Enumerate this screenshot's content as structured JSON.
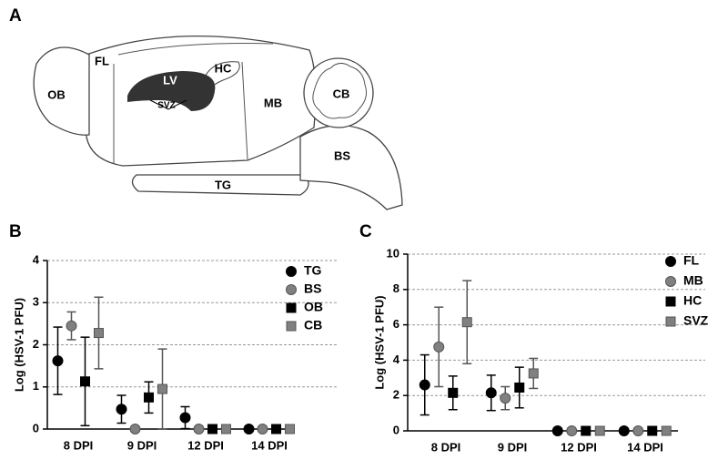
{
  "panel_labels": [
    "A",
    "B",
    "C"
  ],
  "diagram_labels": [
    "OB",
    "FL",
    "LV",
    "HC",
    "SVZ",
    "MB",
    "CB",
    "BS",
    "TG"
  ],
  "chart_data": [
    {
      "type": "dot",
      "y_label": "Log (HSV-1 PFU)",
      "categories": [
        "8 DPI",
        "9 DPI",
        "12 DPI",
        "14 DPI"
      ],
      "ylim": [
        0,
        4
      ],
      "yticks": [
        0,
        1,
        2,
        3,
        4
      ],
      "grid": true,
      "legend": "upper right",
      "series": [
        {
          "name": "TG",
          "color": "#000000",
          "marker": "circle",
          "values": [
            1.62,
            0.47,
            0.27,
            0
          ],
          "errors": [
            0.8,
            0.33,
            0.26,
            null
          ]
        },
        {
          "name": "BS",
          "color": "#808080",
          "marker": "circle",
          "values": [
            2.45,
            0,
            0,
            0
          ],
          "errors": [
            0.33,
            null,
            null,
            null
          ]
        },
        {
          "name": "OB",
          "color": "#000000",
          "marker": "square",
          "values": [
            1.13,
            0.75,
            0,
            0
          ],
          "errors": [
            1.05,
            0.37,
            null,
            null
          ]
        },
        {
          "name": "CB",
          "color": "#808080",
          "marker": "square",
          "values": [
            2.28,
            0.95,
            0,
            0
          ],
          "errors": [
            0.85,
            0.95,
            null,
            null
          ]
        }
      ]
    },
    {
      "type": "dot",
      "y_label": "Log (HSV-1 PFU)",
      "categories": [
        "8 DPI",
        "9 DPI",
        "12 DPI",
        "14 DPI"
      ],
      "ylim": [
        0,
        10
      ],
      "yticks": [
        0,
        2,
        4,
        6,
        8,
        10
      ],
      "grid": true,
      "legend": "upper right",
      "series": [
        {
          "name": "FL",
          "color": "#000000",
          "marker": "circle",
          "values": [
            2.6,
            2.15,
            0,
            0
          ],
          "errors": [
            1.7,
            1.0,
            null,
            null
          ]
        },
        {
          "name": "MB",
          "color": "#808080",
          "marker": "circle",
          "values": [
            4.75,
            1.85,
            0,
            0
          ],
          "errors": [
            2.25,
            0.65,
            null,
            null
          ]
        },
        {
          "name": "HC",
          "color": "#000000",
          "marker": "square",
          "values": [
            2.15,
            2.45,
            0,
            0
          ],
          "errors": [
            0.95,
            1.15,
            null,
            null
          ]
        },
        {
          "name": "SVZ",
          "color": "#808080",
          "marker": "square",
          "values": [
            6.15,
            3.25,
            0,
            0
          ],
          "errors": [
            2.35,
            0.85,
            null,
            null
          ]
        }
      ]
    }
  ]
}
